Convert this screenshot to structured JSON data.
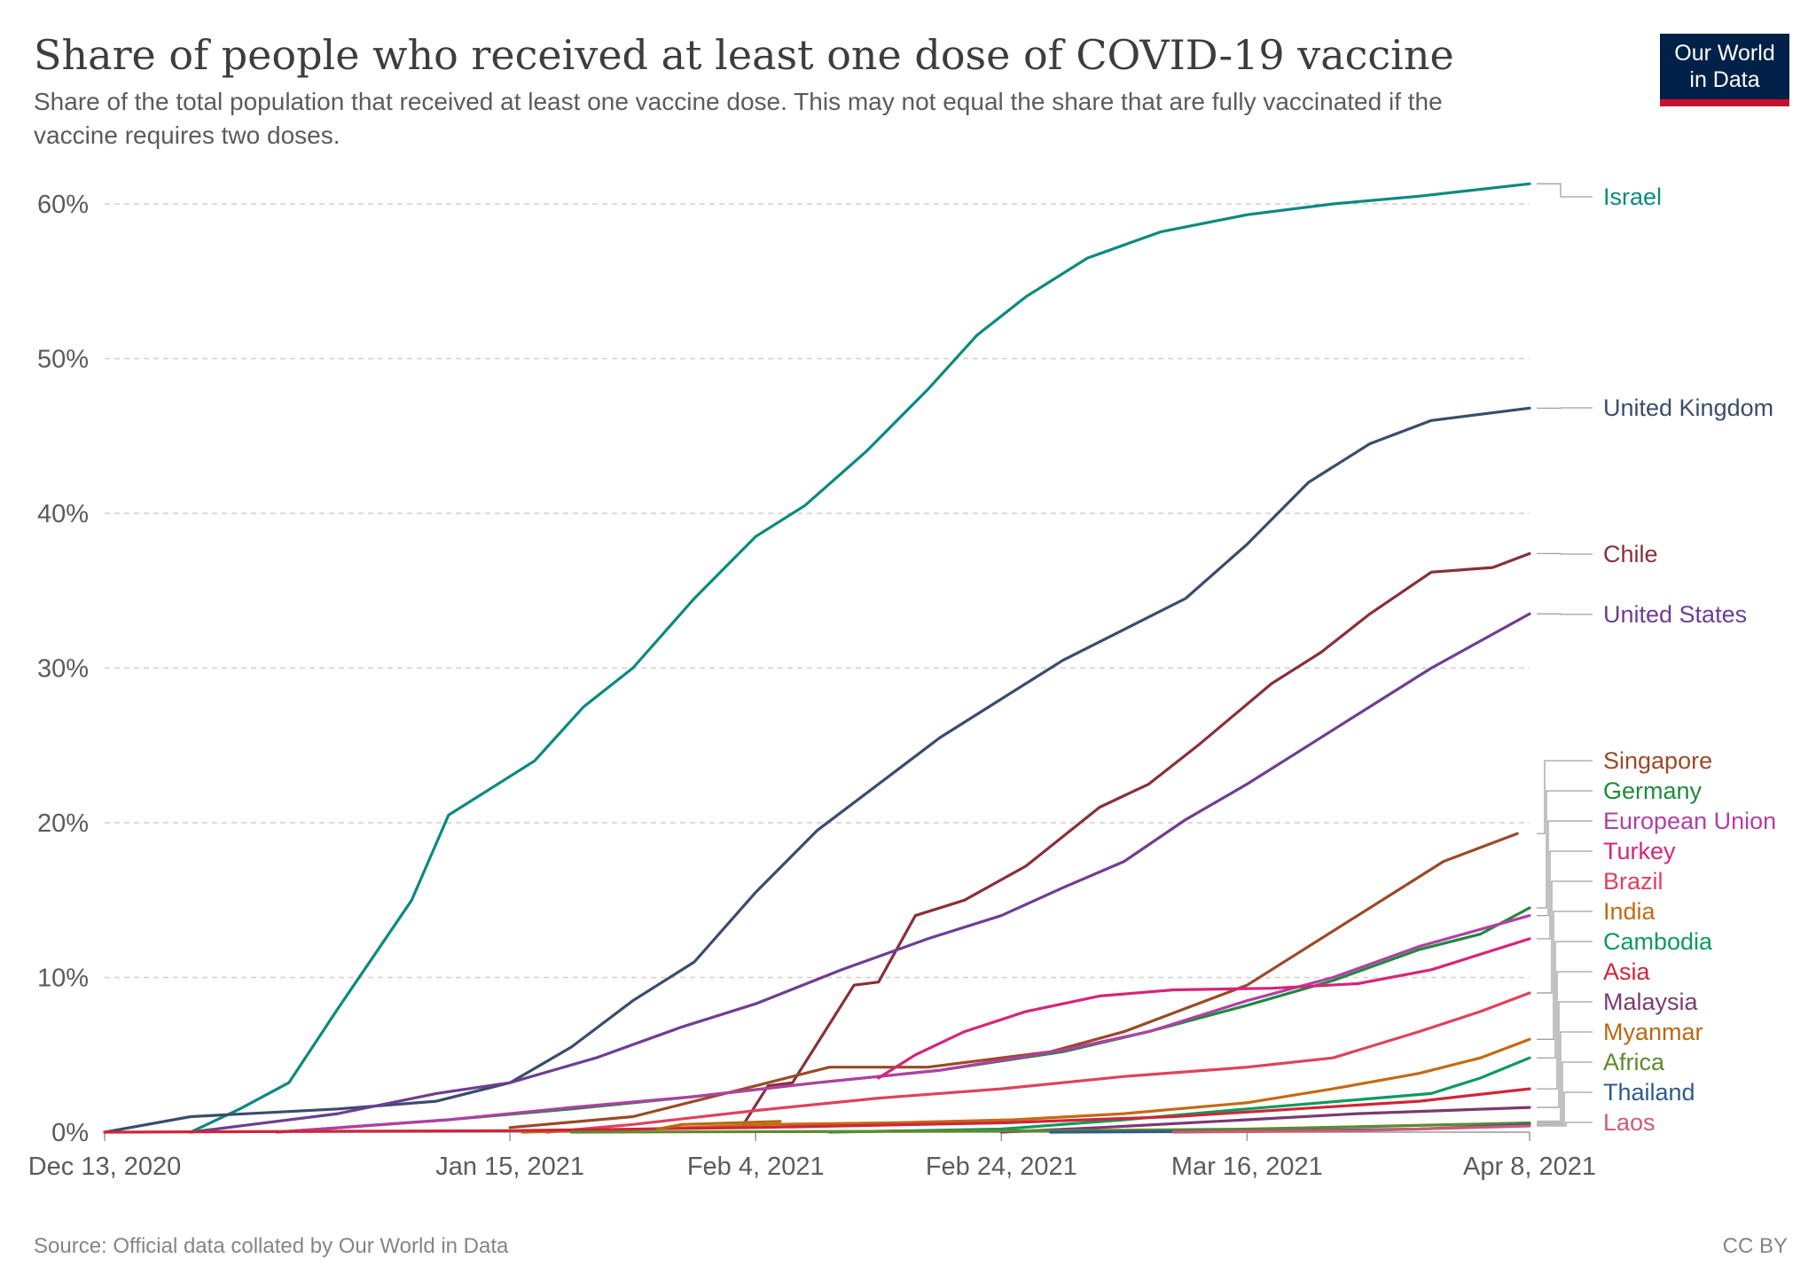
{
  "logo": {
    "line1": "Our World",
    "line2": "in Data",
    "bg": "#002147",
    "accent": "#c8102e"
  },
  "chart_data": {
    "type": "line",
    "title": "Share of people who received at least one dose of COVID-19 vaccine",
    "subtitle_line1": "Share of the total population that received at least one vaccine dose. This may not equal the share that are fully vaccinated if the",
    "subtitle_line2": "vaccine requires two doses.",
    "source": "Source: Official data collated by Our World in Data",
    "license": "CC BY",
    "x_start": "2020-12-13",
    "x_end": "2021-04-08",
    "xticks": [
      {
        "date": "2020-12-13",
        "label": "Dec 13, 2020"
      },
      {
        "date": "2021-01-15",
        "label": "Jan 15, 2021"
      },
      {
        "date": "2021-02-04",
        "label": "Feb 4, 2021"
      },
      {
        "date": "2021-02-24",
        "label": "Feb 24, 2021"
      },
      {
        "date": "2021-03-16",
        "label": "Mar 16, 2021"
      },
      {
        "date": "2021-04-08",
        "label": "Apr 8, 2021"
      }
    ],
    "ylim": [
      0,
      60
    ],
    "yticks": [
      0,
      10,
      20,
      30,
      40,
      50,
      60
    ],
    "ytick_suffix": "%",
    "grid": true,
    "series": [
      {
        "name": "Israel",
        "color": "#0b8a7f",
        "points": [
          [
            "2020-12-20",
            0
          ],
          [
            "2020-12-24",
            1.5
          ],
          [
            "2020-12-28",
            3.2
          ],
          [
            "2021-01-01",
            8
          ],
          [
            "2021-01-04",
            11.5
          ],
          [
            "2021-01-07",
            15
          ],
          [
            "2021-01-10",
            20.5
          ],
          [
            "2021-01-13",
            22
          ],
          [
            "2021-01-17",
            24
          ],
          [
            "2021-01-21",
            27.5
          ],
          [
            "2021-01-25",
            30
          ],
          [
            "2021-01-30",
            34.5
          ],
          [
            "2021-02-04",
            38.5
          ],
          [
            "2021-02-08",
            40.5
          ],
          [
            "2021-02-13",
            44
          ],
          [
            "2021-02-18",
            48
          ],
          [
            "2021-02-22",
            51.5
          ],
          [
            "2021-02-26",
            54
          ],
          [
            "2021-03-03",
            56.5
          ],
          [
            "2021-03-09",
            58.2
          ],
          [
            "2021-03-16",
            59.3
          ],
          [
            "2021-03-23",
            60
          ],
          [
            "2021-03-30",
            60.5
          ],
          [
            "2021-04-08",
            61.3
          ]
        ]
      },
      {
        "name": "United Kingdom",
        "color": "#3b4c6b",
        "points": [
          [
            "2020-12-13",
            0
          ],
          [
            "2020-12-20",
            1
          ],
          [
            "2021-01-01",
            1.5
          ],
          [
            "2021-01-09",
            2
          ],
          [
            "2021-01-15",
            3.2
          ],
          [
            "2021-01-20",
            5.5
          ],
          [
            "2021-01-25",
            8.5
          ],
          [
            "2021-01-30",
            11
          ],
          [
            "2021-02-04",
            15.5
          ],
          [
            "2021-02-09",
            19.5
          ],
          [
            "2021-02-14",
            22.5
          ],
          [
            "2021-02-19",
            25.5
          ],
          [
            "2021-02-24",
            28
          ],
          [
            "2021-03-01",
            30.5
          ],
          [
            "2021-03-06",
            32.5
          ],
          [
            "2021-03-11",
            34.5
          ],
          [
            "2021-03-16",
            38
          ],
          [
            "2021-03-21",
            42
          ],
          [
            "2021-03-26",
            44.5
          ],
          [
            "2021-03-31",
            46
          ],
          [
            "2021-04-08",
            46.8
          ]
        ]
      },
      {
        "name": "Chile",
        "color": "#883039",
        "points": [
          [
            "2021-02-03",
            0.5
          ],
          [
            "2021-02-05",
            3
          ],
          [
            "2021-02-07",
            3.2
          ],
          [
            "2021-02-12",
            9.5
          ],
          [
            "2021-02-14",
            9.7
          ],
          [
            "2021-02-17",
            14
          ],
          [
            "2021-02-21",
            15
          ],
          [
            "2021-02-26",
            17.2
          ],
          [
            "2021-03-04",
            21
          ],
          [
            "2021-03-08",
            22.5
          ],
          [
            "2021-03-12",
            25
          ],
          [
            "2021-03-18",
            29
          ],
          [
            "2021-03-22",
            31
          ],
          [
            "2021-03-26",
            33.5
          ],
          [
            "2021-03-31",
            36.2
          ],
          [
            "2021-04-05",
            36.5
          ],
          [
            "2021-04-08",
            37.4
          ]
        ]
      },
      {
        "name": "United States",
        "color": "#6d3e91",
        "points": [
          [
            "2020-12-20",
            0
          ],
          [
            "2021-01-01",
            1.2
          ],
          [
            "2021-01-09",
            2.5
          ],
          [
            "2021-01-15",
            3.2
          ],
          [
            "2021-01-22",
            4.8
          ],
          [
            "2021-01-29",
            6.8
          ],
          [
            "2021-02-04",
            8.3
          ],
          [
            "2021-02-11",
            10.5
          ],
          [
            "2021-02-18",
            12.5
          ],
          [
            "2021-02-24",
            14
          ],
          [
            "2021-03-01",
            15.8
          ],
          [
            "2021-03-06",
            17.5
          ],
          [
            "2021-03-11",
            20.2
          ],
          [
            "2021-03-16",
            22.5
          ],
          [
            "2021-03-21",
            25
          ],
          [
            "2021-03-26",
            27.5
          ],
          [
            "2021-03-31",
            30
          ],
          [
            "2021-04-08",
            33.5
          ]
        ]
      },
      {
        "name": "Singapore",
        "color": "#a2559c",
        "points": [
          [
            "2021-01-15",
            0.3
          ],
          [
            "2021-01-25",
            1
          ],
          [
            "2021-02-04",
            3
          ],
          [
            "2021-02-10",
            4.2
          ],
          [
            "2021-02-18",
            4.2
          ],
          [
            "2021-02-28",
            5.2
          ],
          [
            "2021-03-06",
            6.5
          ],
          [
            "2021-03-16",
            9.5
          ],
          [
            "2021-03-25",
            14
          ],
          [
            "2021-04-01",
            17.5
          ],
          [
            "2021-04-07",
            19.3
          ]
        ],
        "colorOverride": "#9a4a27"
      },
      {
        "name": "Germany",
        "color": "#00847e",
        "points": [
          [
            "2020-12-27",
            0
          ],
          [
            "2021-01-10",
            0.8
          ],
          [
            "2021-01-20",
            1.5
          ],
          [
            "2021-01-30",
            2.3
          ],
          [
            "2021-02-09",
            3.2
          ],
          [
            "2021-02-19",
            4
          ],
          [
            "2021-03-01",
            5.2
          ],
          [
            "2021-03-08",
            6.5
          ],
          [
            "2021-03-16",
            8.2
          ],
          [
            "2021-03-23",
            9.8
          ],
          [
            "2021-03-30",
            11.8
          ],
          [
            "2021-04-04",
            12.8
          ],
          [
            "2021-04-08",
            14.5
          ]
        ],
        "colorOverride": "#1d8a3c"
      },
      {
        "name": "European Union",
        "color": "#b13fa5",
        "points": [
          [
            "2020-12-27",
            0
          ],
          [
            "2021-01-10",
            0.8
          ],
          [
            "2021-01-20",
            1.6
          ],
          [
            "2021-01-30",
            2.3
          ],
          [
            "2021-02-09",
            3.2
          ],
          [
            "2021-02-19",
            4
          ],
          [
            "2021-03-01",
            5.3
          ],
          [
            "2021-03-08",
            6.5
          ],
          [
            "2021-03-16",
            8.5
          ],
          [
            "2021-03-23",
            10
          ],
          [
            "2021-03-30",
            12
          ],
          [
            "2021-04-08",
            14
          ]
        ]
      },
      {
        "name": "Turkey",
        "color": "#d6247a",
        "points": [
          [
            "2021-02-14",
            3.5
          ],
          [
            "2021-02-17",
            5
          ],
          [
            "2021-02-21",
            6.5
          ],
          [
            "2021-02-26",
            7.8
          ],
          [
            "2021-03-04",
            8.8
          ],
          [
            "2021-03-10",
            9.2
          ],
          [
            "2021-03-18",
            9.3
          ],
          [
            "2021-03-25",
            9.6
          ],
          [
            "2021-03-31",
            10.5
          ],
          [
            "2021-04-08",
            12.5
          ]
        ]
      },
      {
        "name": "Brazil",
        "color": "#e0415e",
        "points": [
          [
            "2021-01-18",
            0
          ],
          [
            "2021-01-25",
            0.5
          ],
          [
            "2021-02-04",
            1.4
          ],
          [
            "2021-02-14",
            2.2
          ],
          [
            "2021-02-24",
            2.8
          ],
          [
            "2021-03-06",
            3.6
          ],
          [
            "2021-03-16",
            4.2
          ],
          [
            "2021-03-23",
            4.8
          ],
          [
            "2021-03-30",
            6.5
          ],
          [
            "2021-04-04",
            7.8
          ],
          [
            "2021-04-08",
            9
          ]
        ]
      },
      {
        "name": "India",
        "color": "#c46a12",
        "points": [
          [
            "2021-01-16",
            0
          ],
          [
            "2021-01-26",
            0.2
          ],
          [
            "2021-02-05",
            0.5
          ],
          [
            "2021-02-15",
            0.6
          ],
          [
            "2021-02-25",
            0.8
          ],
          [
            "2021-03-06",
            1.2
          ],
          [
            "2021-03-16",
            1.9
          ],
          [
            "2021-03-23",
            2.8
          ],
          [
            "2021-03-30",
            3.8
          ],
          [
            "2021-04-04",
            4.8
          ],
          [
            "2021-04-08",
            6
          ]
        ]
      },
      {
        "name": "Cambodia",
        "color": "#0e9a5c",
        "points": [
          [
            "2021-02-10",
            0
          ],
          [
            "2021-02-24",
            0.2
          ],
          [
            "2021-03-06",
            0.8
          ],
          [
            "2021-03-16",
            1.5
          ],
          [
            "2021-03-25",
            2.1
          ],
          [
            "2021-03-31",
            2.5
          ],
          [
            "2021-04-04",
            3.5
          ],
          [
            "2021-04-08",
            4.8
          ]
        ]
      },
      {
        "name": "Asia",
        "color": "#d1243a",
        "points": [
          [
            "2020-12-13",
            0
          ],
          [
            "2021-01-15",
            0.1
          ],
          [
            "2021-02-04",
            0.3
          ],
          [
            "2021-02-24",
            0.6
          ],
          [
            "2021-03-10",
            1
          ],
          [
            "2021-03-20",
            1.5
          ],
          [
            "2021-03-30",
            2
          ],
          [
            "2021-04-08",
            2.8
          ]
        ]
      },
      {
        "name": "Malaysia",
        "color": "#7a3a6e",
        "points": [
          [
            "2021-02-24",
            0
          ],
          [
            "2021-03-04",
            0.3
          ],
          [
            "2021-03-16",
            0.8
          ],
          [
            "2021-03-25",
            1.2
          ],
          [
            "2021-04-08",
            1.6
          ]
        ]
      },
      {
        "name": "Myanmar",
        "color": "#b8680f",
        "points": [
          [
            "2021-01-27",
            0.2
          ],
          [
            "2021-01-29",
            0.5
          ],
          [
            "2021-02-06",
            0.7
          ]
        ]
      },
      {
        "name": "Africa",
        "color": "#5f8a2d",
        "points": [
          [
            "2021-01-20",
            0
          ],
          [
            "2021-02-14",
            0.05
          ],
          [
            "2021-03-01",
            0.1
          ],
          [
            "2021-03-16",
            0.2
          ],
          [
            "2021-03-25",
            0.35
          ],
          [
            "2021-04-08",
            0.6
          ]
        ]
      },
      {
        "name": "Thailand",
        "color": "#2e5b8e",
        "points": [
          [
            "2021-02-28",
            0
          ],
          [
            "2021-03-16",
            0.05
          ],
          [
            "2021-03-30",
            0.2
          ],
          [
            "2021-04-08",
            0.5
          ]
        ]
      },
      {
        "name": "Laos",
        "color": "#d05a75",
        "points": [
          [
            "2021-03-10",
            0
          ],
          [
            "2021-03-25",
            0.1
          ],
          [
            "2021-04-08",
            0.4
          ]
        ]
      }
    ],
    "labels": [
      {
        "text": "Israel",
        "color": "#0b8a7f"
      },
      {
        "text": "United Kingdom",
        "color": "#3b4c6b"
      },
      {
        "text": "Chile",
        "color": "#883039"
      },
      {
        "text": "United States",
        "color": "#6d3e91"
      },
      {
        "text": "Singapore",
        "color": "#9a4a27"
      },
      {
        "text": "Germany",
        "color": "#1d8a3c"
      },
      {
        "text": "European Union",
        "color": "#b13fa5"
      },
      {
        "text": "Turkey",
        "color": "#d6247a"
      },
      {
        "text": "Brazil",
        "color": "#e0415e"
      },
      {
        "text": "India",
        "color": "#c46a12"
      },
      {
        "text": "Cambodia",
        "color": "#0e9a5c"
      },
      {
        "text": "Asia",
        "color": "#d1243a"
      },
      {
        "text": "Malaysia",
        "color": "#7a3a6e"
      },
      {
        "text": "Myanmar",
        "color": "#b8680f"
      },
      {
        "text": "Africa",
        "color": "#5f8a2d"
      },
      {
        "text": "Thailand",
        "color": "#2e5b8e"
      },
      {
        "text": "Laos",
        "color": "#d05a75"
      }
    ]
  }
}
